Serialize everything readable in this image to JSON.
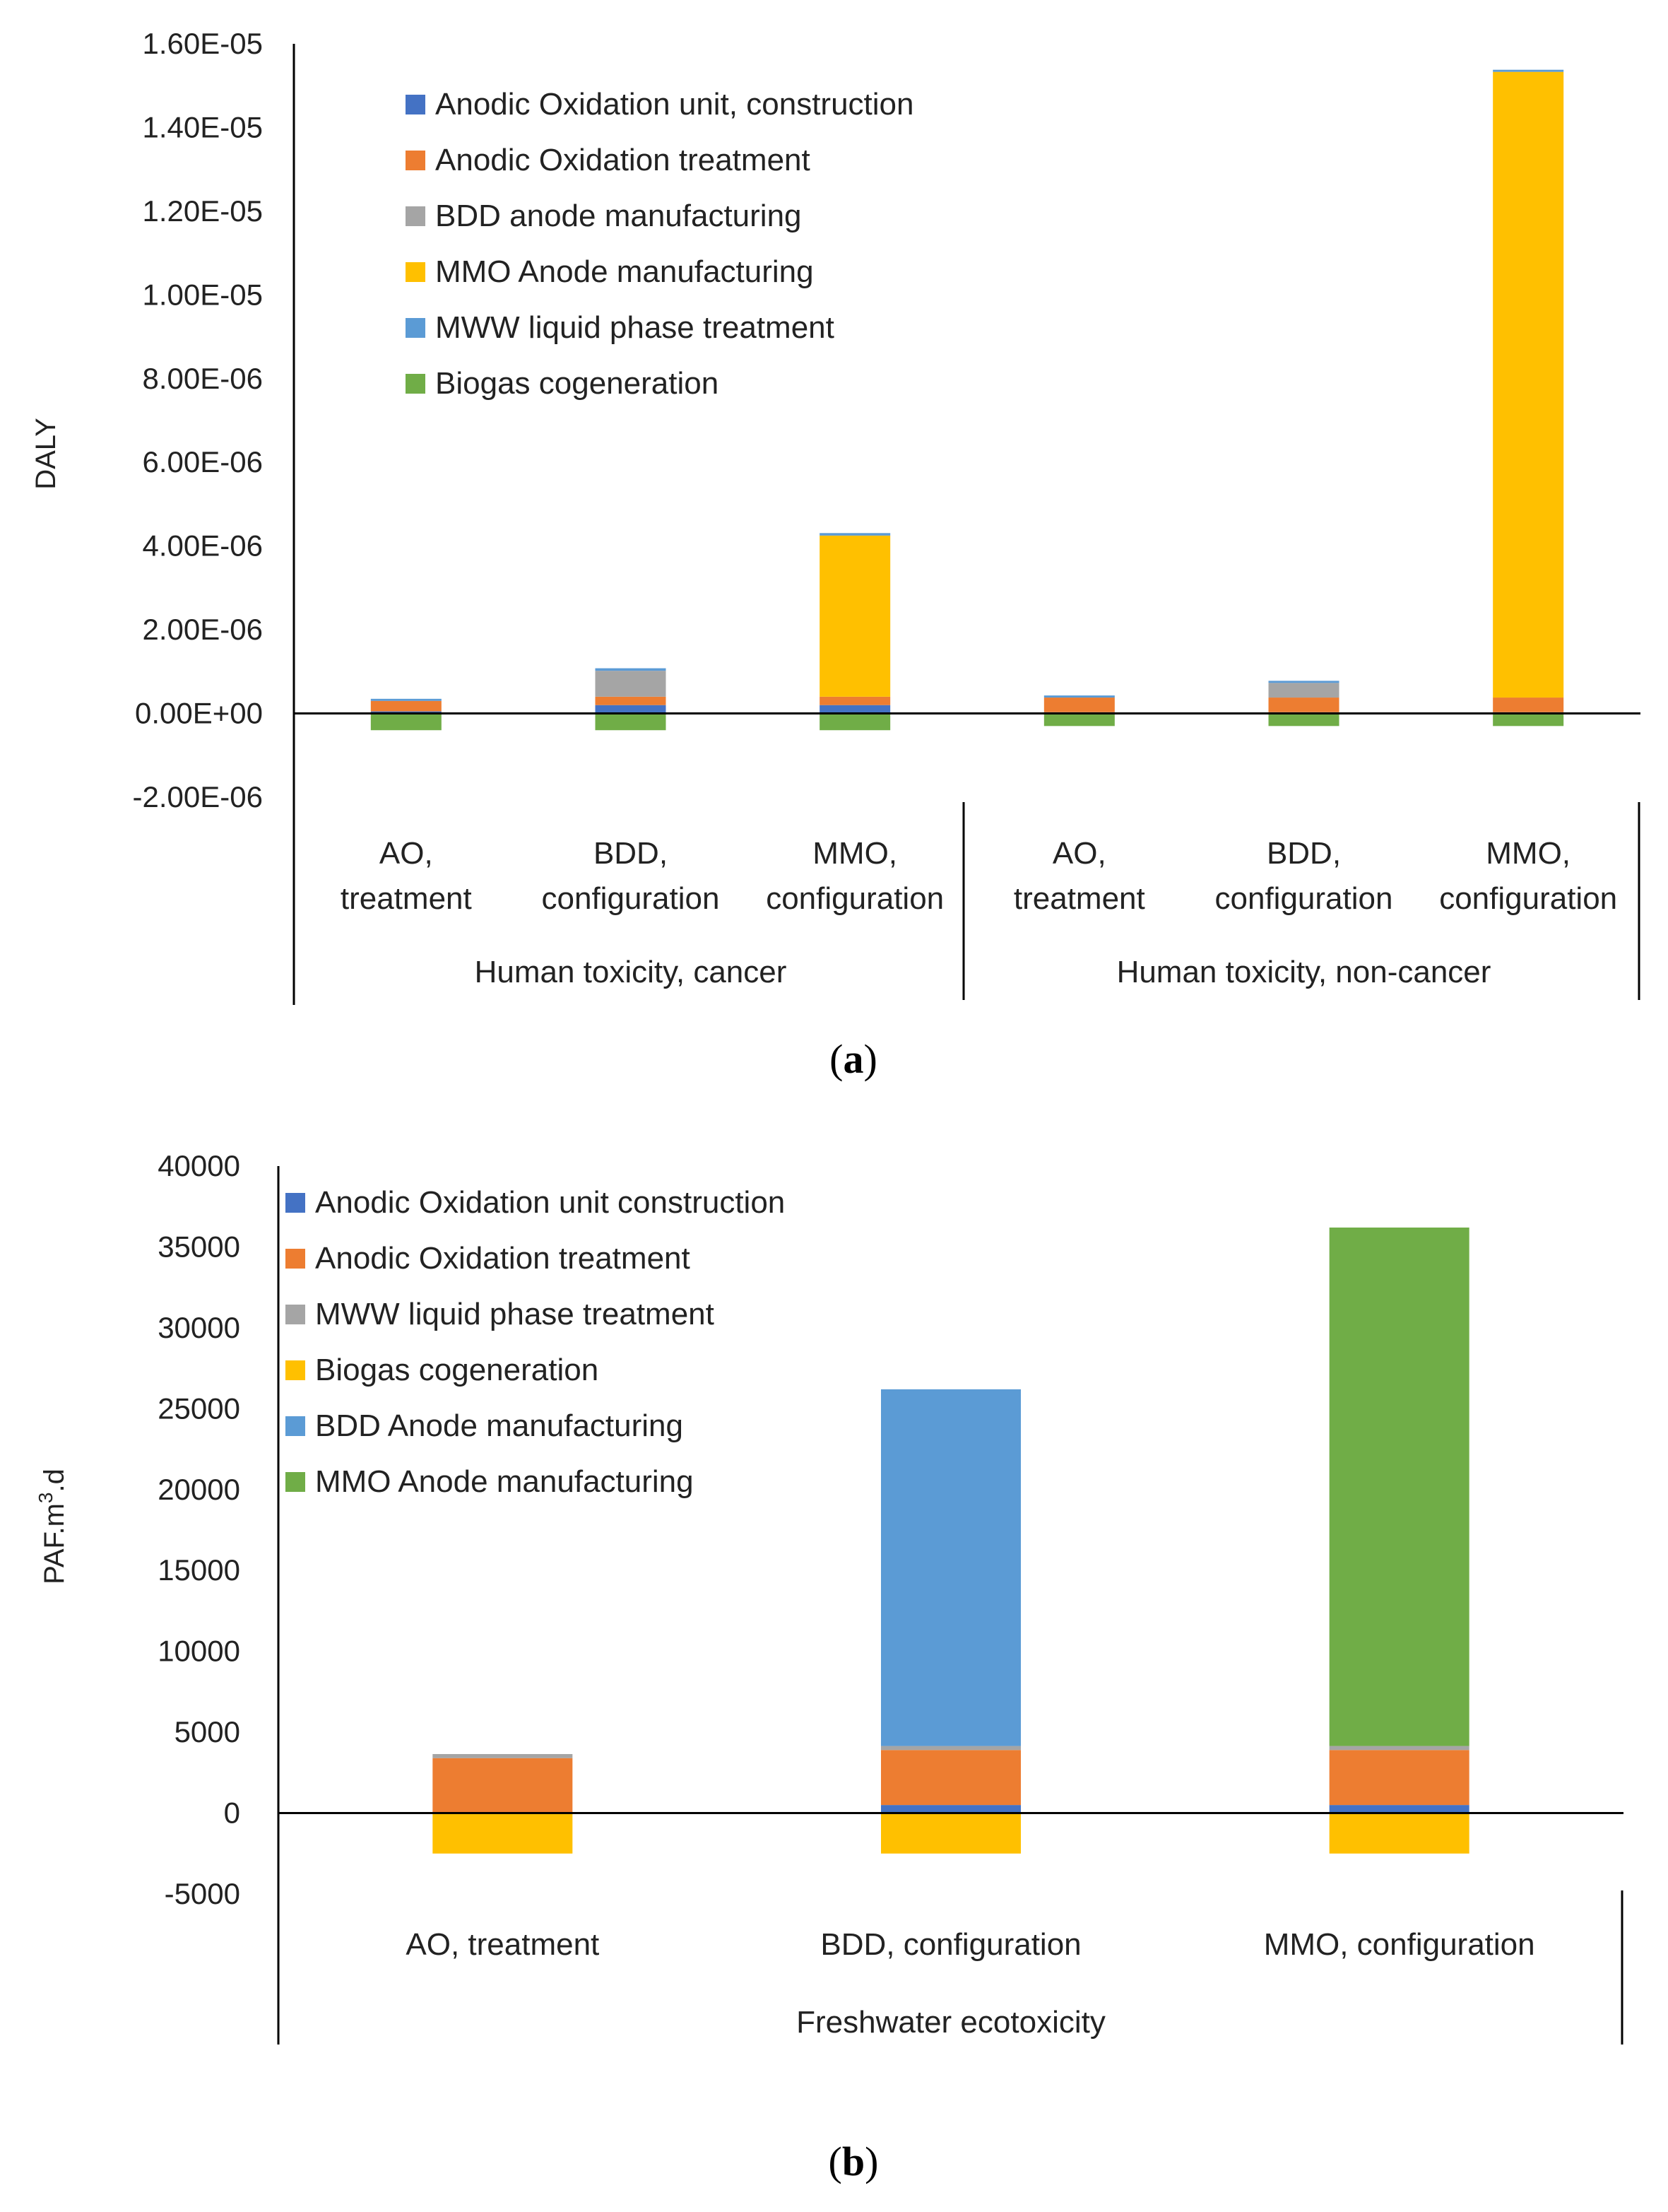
{
  "chart_data": [
    {
      "id": "a",
      "type": "bar",
      "stacked": true,
      "caption": "a",
      "ylabel": "DALY",
      "ylim": [
        -2e-06,
        1.6e-05
      ],
      "yticks": [
        1.6e-05,
        1.4e-05,
        1.2e-05,
        1e-05,
        8e-06,
        6e-06,
        4e-06,
        2e-06,
        0,
        -2e-06
      ],
      "ytick_labels": [
        "1.60E-05",
        "1.40E-05",
        "1.20E-05",
        "1.00E-05",
        "8.00E-06",
        "6.00E-06",
        "4.00E-06",
        "2.00E-06",
        "0.00E+00",
        "-2.00E-06"
      ],
      "groups": [
        {
          "name": "Human toxicity, cancer",
          "categories": [
            [
              "AO,",
              "treatment"
            ],
            [
              "BDD,",
              "configuration"
            ],
            [
              "MMO,",
              "configuration"
            ]
          ]
        },
        {
          "name": "Human toxicity, non-cancer",
          "categories": [
            [
              "AO,",
              "treatment"
            ],
            [
              "BDD,",
              "configuration"
            ],
            [
              "MMO,",
              "configuration"
            ]
          ]
        }
      ],
      "series": [
        {
          "name": "Anodic Oxidation unit, construction",
          "color": "#4472C4",
          "values": [
            5e-08,
            2e-07,
            2e-07,
            3e-08,
            3e-08,
            3e-08
          ]
        },
        {
          "name": "Anodic Oxidation treatment",
          "color": "#ED7D31",
          "values": [
            2.5e-07,
            2e-07,
            2e-07,
            3.5e-07,
            3.5e-07,
            3.5e-07
          ]
        },
        {
          "name": "BDD anode manufacturing",
          "color": "#A5A5A5",
          "values": [
            0,
            6.2e-07,
            0,
            0,
            3.5e-07,
            0
          ]
        },
        {
          "name": "MMO Anode manufacturing",
          "color": "#FFC000",
          "values": [
            0,
            0,
            3.85e-06,
            0,
            0,
            1.495e-05
          ]
        },
        {
          "name": "MWW liquid phase treatment",
          "color": "#5B9BD5",
          "values": [
            5e-08,
            6e-08,
            6e-08,
            5e-08,
            5e-08,
            5e-08
          ]
        },
        {
          "name": "Biogas cogeneration",
          "color": "#70AD47",
          "values": [
            -4e-07,
            -4e-07,
            -4e-07,
            -3e-07,
            -3e-07,
            -3e-07
          ]
        }
      ]
    },
    {
      "id": "b",
      "type": "bar",
      "stacked": true,
      "caption": "b",
      "ylabel_main": "PAF.m",
      "ylabel_sup": "3",
      "ylabel_tail": ".d",
      "ylim": [
        -5000,
        40000
      ],
      "yticks": [
        40000,
        35000,
        30000,
        25000,
        20000,
        15000,
        10000,
        5000,
        0,
        -5000
      ],
      "ytick_labels": [
        "40000",
        "35000",
        "30000",
        "25000",
        "20000",
        "15000",
        "10000",
        "5000",
        "0",
        "-5000"
      ],
      "groups": [
        {
          "name": "Freshwater ecotoxicity",
          "categories": [
            [
              "AO, treatment"
            ],
            [
              "BDD, configuration"
            ],
            [
              "MMO, configuration"
            ]
          ]
        }
      ],
      "series": [
        {
          "name": "Anodic Oxidation unit construction",
          "color": "#4472C4",
          "values": [
            0,
            500,
            500
          ]
        },
        {
          "name": "Anodic Oxidation treatment",
          "color": "#ED7D31",
          "values": [
            3400,
            3400,
            3400
          ]
        },
        {
          "name": "MWW liquid phase treatment",
          "color": "#A5A5A5",
          "values": [
            250,
            250,
            250
          ]
        },
        {
          "name": "Biogas cogeneration",
          "color": "#FFC000",
          "values": [
            -2500,
            -2500,
            -2500
          ]
        },
        {
          "name": "BDD Anode manufacturing",
          "color": "#5B9BD5",
          "values": [
            0,
            22050,
            0
          ]
        },
        {
          "name": "MMO Anode manufacturing",
          "color": "#70AD47",
          "values": [
            0,
            0,
            32050
          ]
        }
      ]
    }
  ]
}
